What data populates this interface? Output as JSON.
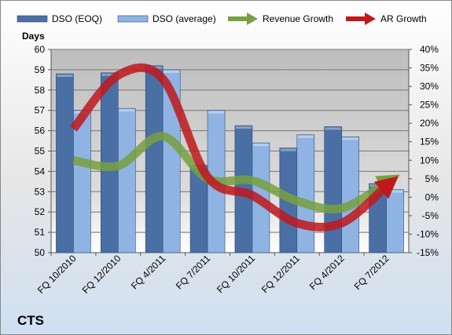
{
  "chart_data": {
    "type": "bar_line",
    "title": "CTS",
    "ylabel": "Days",
    "categories": [
      "FQ 10/2010",
      "FQ 12/2010",
      "FQ 4/2011",
      "FQ 7/2011",
      "FQ 10/2011",
      "FQ 12/2011",
      "FQ 4/2012",
      "FQ 7/2012"
    ],
    "series": [
      {
        "name": "DSO (EOQ)",
        "color": "#4a6fa5",
        "kind": "bar",
        "values": [
          58.8,
          58.85,
          59.2,
          54.3,
          56.25,
          55.15,
          56.2,
          53.4
        ]
      },
      {
        "name": "DSO (average)",
        "color": "#8fb4e3",
        "kind": "bar",
        "values": [
          57.0,
          57.1,
          59.0,
          57.0,
          55.4,
          55.8,
          55.7,
          53.1
        ]
      },
      {
        "name": "Revenue Growth",
        "color": "#77a040",
        "kind": "line",
        "axis": "y2",
        "values": [
          10,
          8.5,
          16.5,
          5,
          4.5,
          -1,
          -3,
          4
        ]
      },
      {
        "name": "AR Growth",
        "color": "#c0181c",
        "kind": "line",
        "axis": "y2",
        "values": [
          18.5,
          33,
          32,
          5.5,
          0.5,
          -7,
          -7,
          3
        ]
      }
    ],
    "ylim": [
      50,
      60
    ],
    "yticks": [
      50,
      51,
      52,
      53,
      54,
      55,
      56,
      57,
      58,
      59,
      60
    ],
    "y2lim": [
      -15,
      40
    ],
    "y2ticks": [
      {
        "value": -15,
        "label": "-15%"
      },
      {
        "value": -10,
        "label": "-10%"
      },
      {
        "value": -5,
        "label": "-5%"
      },
      {
        "value": 0,
        "label": "0%"
      },
      {
        "value": 5,
        "label": "5%"
      },
      {
        "value": 10,
        "label": "10%"
      },
      {
        "value": 15,
        "label": "15%"
      },
      {
        "value": 20,
        "label": "20%"
      },
      {
        "value": 25,
        "label": "25%"
      },
      {
        "value": 30,
        "label": "30%"
      },
      {
        "value": 35,
        "label": "35%"
      },
      {
        "value": 40,
        "label": "40%"
      }
    ],
    "grid": true
  }
}
